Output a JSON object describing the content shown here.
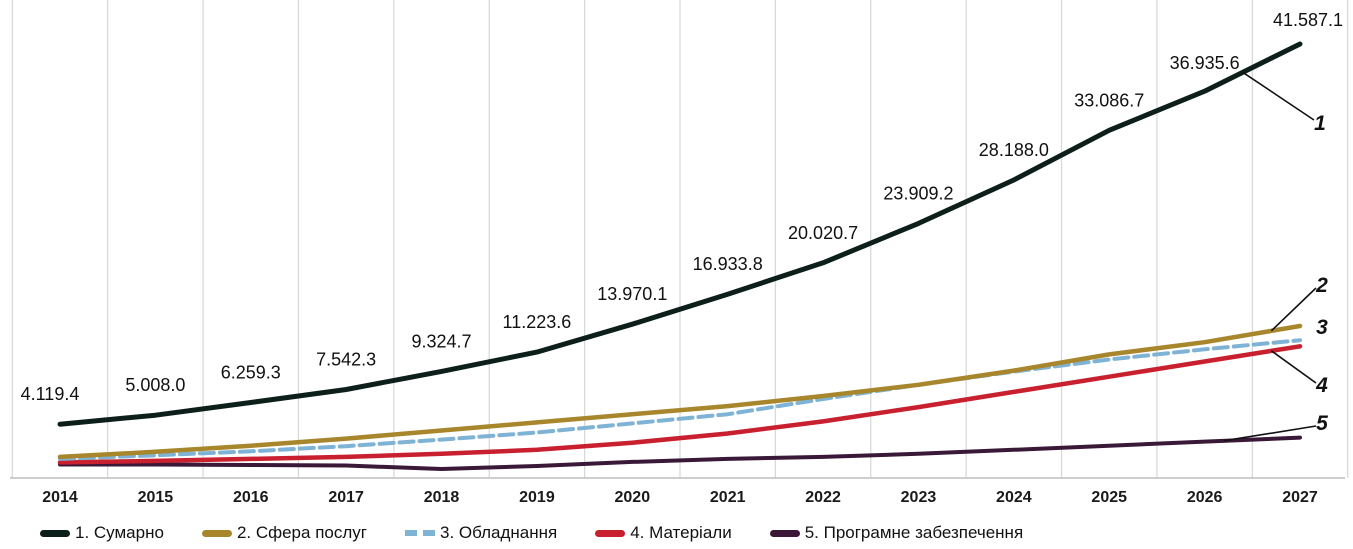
{
  "chart_data": {
    "type": "line",
    "title": "",
    "xlabel": "",
    "ylabel": "",
    "x": [
      "2014",
      "2015",
      "2016",
      "2017",
      "2018",
      "2019",
      "2020",
      "2021",
      "2022",
      "2023",
      "2024",
      "2025",
      "2026",
      "2027"
    ],
    "ylim": [
      0,
      44000
    ],
    "grid": "vertical",
    "legend_placement": "bottom",
    "series": [
      {
        "name": "1. Сумарно",
        "callout": "1",
        "color": "#0d1f1a",
        "style": "solid",
        "values": [
          4119.4,
          5008.0,
          6259.3,
          7542.3,
          9324.7,
          11223.6,
          13970.1,
          16933.8,
          20020.7,
          23909.2,
          28188.0,
          33086.7,
          36935.6,
          41587.1
        ]
      },
      {
        "name": "2. Сфера послуг",
        "callout": "2",
        "color": "#a8862c",
        "style": "solid",
        "values": [
          900,
          1400,
          2000,
          2700,
          3500,
          4300,
          5100,
          5900,
          6900,
          8000,
          9400,
          11000,
          12200,
          13800
        ]
      },
      {
        "name": "3. Обладнання",
        "callout": "3",
        "color": "#7fb3d5",
        "style": "dashed",
        "values": [
          700,
          1050,
          1450,
          1950,
          2600,
          3300,
          4200,
          5100,
          6600,
          8000,
          9300,
          10500,
          11500,
          12400
        ]
      },
      {
        "name": "4. Матеріали",
        "callout": "4",
        "color": "#c8202f",
        "style": "solid",
        "values": [
          350,
          500,
          700,
          900,
          1200,
          1600,
          2300,
          3200,
          4400,
          5800,
          7300,
          8800,
          10300,
          11800
        ]
      },
      {
        "name": "5. Програмне забезпечення",
        "callout": "5",
        "color": "#3a1838",
        "style": "solid",
        "values": [
          150,
          150,
          100,
          50,
          -300,
          0,
          400,
          700,
          900,
          1200,
          1600,
          2000,
          2400,
          2800
        ]
      }
    ],
    "data_labels": [
      "4.119.4",
      "5.008.0",
      "6.259.3",
      "7.542.3",
      "9.324.7",
      "11.223.6",
      "13.970.1",
      "16.933.8",
      "20.020.7",
      "23.909.2",
      "28.188.0",
      "33.086.7",
      "36.935.6",
      "41.587.1"
    ]
  },
  "legend": [
    "1. Сумарно",
    "2. Сфера послуг",
    "3. Обладнання",
    "4. Матеріали",
    "5. Програмне забезпечення"
  ]
}
